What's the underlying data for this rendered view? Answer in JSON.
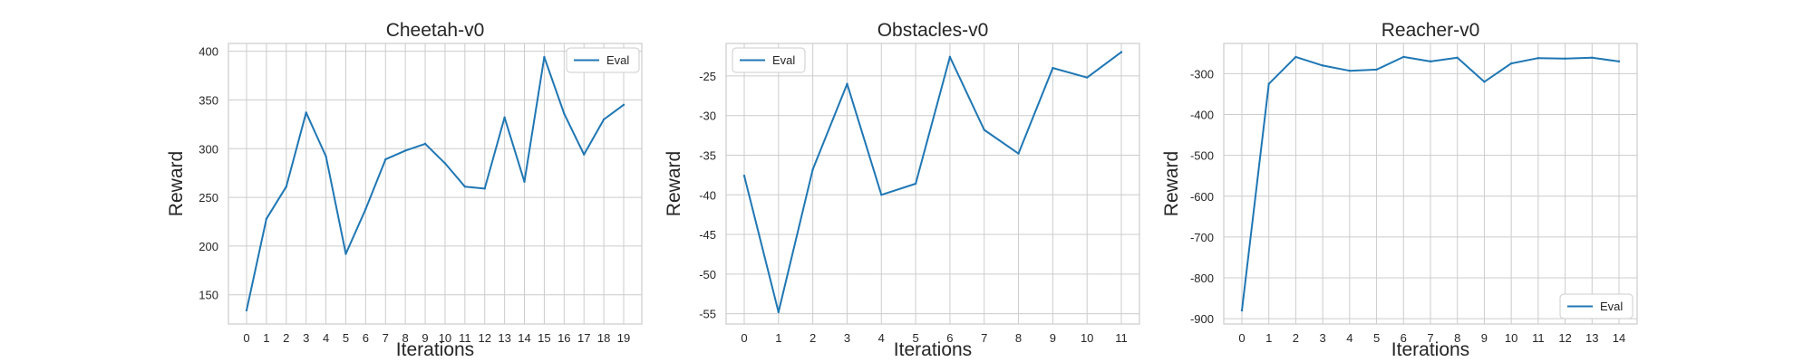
{
  "chart_data": [
    {
      "type": "line",
      "title": "Cheetah-v0",
      "xlabel": "Iterations",
      "ylabel": "Reward",
      "categories": [
        "0",
        "1",
        "2",
        "3",
        "4",
        "5",
        "6",
        "7",
        "8",
        "9",
        "10",
        "11",
        "12",
        "13",
        "14",
        "15",
        "16",
        "17",
        "18",
        "19"
      ],
      "x": [
        0,
        1,
        2,
        3,
        4,
        5,
        6,
        7,
        8,
        9,
        10,
        11,
        12,
        13,
        14,
        15,
        16,
        17,
        18,
        19
      ],
      "series": [
        {
          "name": "Eval",
          "color": "#1f77b4",
          "values": [
            134,
            228,
            261,
            337,
            292,
            192,
            238,
            289,
            298,
            305,
            285,
            261,
            259,
            332,
            266,
            394,
            336,
            294,
            330,
            345
          ]
        }
      ],
      "ylim": [
        120,
        408
      ],
      "yticks": [
        150,
        200,
        250,
        300,
        350,
        400
      ],
      "legend": "upper right",
      "grid": true
    },
    {
      "type": "line",
      "title": "Obstacles-v0",
      "xlabel": "Iterations",
      "ylabel": "Reward",
      "categories": [
        "0",
        "1",
        "2",
        "3",
        "4",
        "5",
        "6",
        "7",
        "8",
        "9",
        "10",
        "11"
      ],
      "x": [
        0,
        1,
        2,
        3,
        4,
        5,
        6,
        7,
        8,
        9,
        10,
        11
      ],
      "series": [
        {
          "name": "Eval",
          "color": "#1f77b4",
          "values": [
            -37.6,
            -54.8,
            -36.8,
            -26.0,
            -40.0,
            -38.6,
            -22.6,
            -31.8,
            -34.8,
            -24.0,
            -25.2,
            -22.0
          ]
        }
      ],
      "ylim": [
        -56.3,
        -20.9
      ],
      "yticks": [
        -55,
        -50,
        -45,
        -40,
        -35,
        -30,
        -25
      ],
      "legend": "upper left",
      "grid": true
    },
    {
      "type": "line",
      "title": "Reacher-v0",
      "xlabel": "Iterations",
      "ylabel": "Reward",
      "categories": [
        "0",
        "1",
        "2",
        "3",
        "4",
        "5",
        "6",
        "7",
        "8",
        "9",
        "10",
        "11",
        "12",
        "13",
        "14"
      ],
      "x": [
        0,
        1,
        2,
        3,
        4,
        5,
        6,
        7,
        8,
        9,
        10,
        11,
        12,
        13,
        14
      ],
      "series": [
        {
          "name": "Eval",
          "color": "#1f77b4",
          "values": [
            -880,
            -325,
            -259,
            -280,
            -293,
            -290,
            -259,
            -270,
            -261,
            -320,
            -275,
            -262,
            -263,
            -261,
            -270
          ]
        }
      ],
      "ylim": [
        -913,
        -226
      ],
      "yticks": [
        -900,
        -800,
        -700,
        -600,
        -500,
        -400,
        -300
      ],
      "legend": "lower right",
      "grid": true
    }
  ]
}
